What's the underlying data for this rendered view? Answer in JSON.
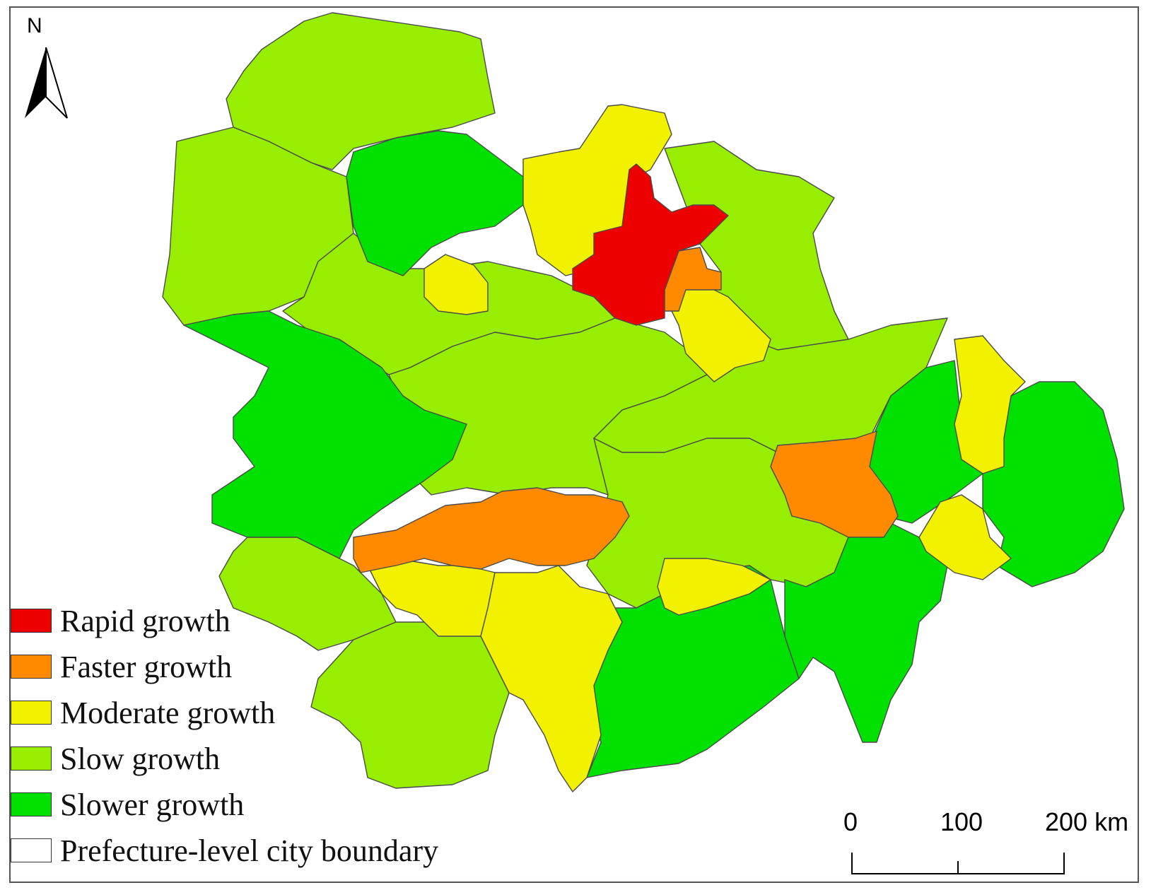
{
  "north_arrow": {
    "label": "N"
  },
  "colors": {
    "rapid": "#ee0000",
    "faster": "#ff8a00",
    "moderate": "#f2f200",
    "slow": "#97ee00",
    "slower": "#00e100",
    "boundary": "#4a4a4a"
  },
  "legend": [
    {
      "key": "rapid",
      "label": "Rapid growth"
    },
    {
      "key": "faster",
      "label": "Faster growth"
    },
    {
      "key": "moderate",
      "label": "Moderate growth"
    },
    {
      "key": "slow",
      "label": "Slow growth"
    },
    {
      "key": "slower",
      "label": "Slower growth"
    },
    {
      "key": "boundary",
      "label": "Prefecture-level city boundary"
    }
  ],
  "scale_bar": {
    "labels": [
      "0",
      "100",
      "200 km"
    ]
  }
}
